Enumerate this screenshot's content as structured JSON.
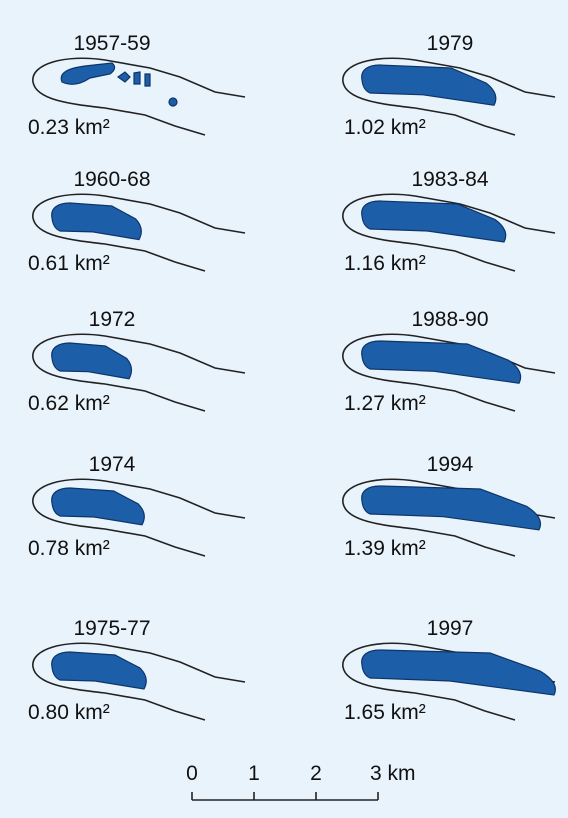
{
  "panels": [
    {
      "period": "1957-59",
      "area": "0.23 km²"
    },
    {
      "period": "1960-68",
      "area": "0.61 km²"
    },
    {
      "period": "1972",
      "area": "0.62 km²"
    },
    {
      "period": "1974",
      "area": "0.78 km²"
    },
    {
      "period": "1975-77",
      "area": "0.80 km²"
    },
    {
      "period": "1979",
      "area": "1.02 km²"
    },
    {
      "period": "1983-84",
      "area": "1.16 km²"
    },
    {
      "period": "1988-90",
      "area": "1.27 km²"
    },
    {
      "period": "1994",
      "area": "1.39 km²"
    },
    {
      "period": "1997",
      "area": "1.65 km²"
    }
  ],
  "scale": {
    "labels": [
      "0",
      "1",
      "2",
      "3 km"
    ]
  }
}
